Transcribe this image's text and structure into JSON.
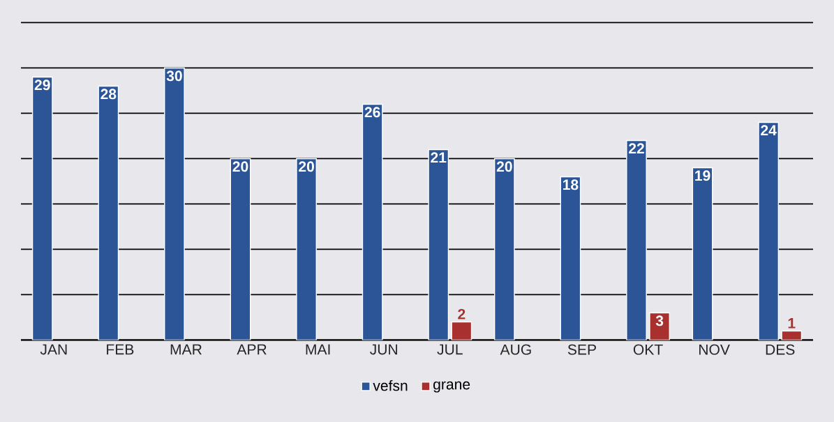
{
  "chart_data": {
    "type": "bar",
    "categories": [
      "JAN",
      "FEB",
      "MAR",
      "APR",
      "MAI",
      "JUN",
      "JUL",
      "AUG",
      "SEP",
      "OKT",
      "NOV",
      "DES"
    ],
    "series": [
      {
        "name": "vefsn",
        "color": "#2c5597",
        "values": [
          29,
          28,
          30,
          20,
          20,
          26,
          21,
          20,
          18,
          22,
          19,
          24
        ]
      },
      {
        "name": "grane",
        "color": "#a8302e",
        "values": [
          null,
          null,
          null,
          null,
          null,
          null,
          2,
          null,
          null,
          3,
          null,
          1
        ]
      }
    ],
    "ylim": [
      0,
      35
    ],
    "yticks": [
      {
        "value": 0,
        "label": null
      },
      {
        "value": 5,
        "label": null
      },
      {
        "value": 10,
        "label": null
      },
      {
        "value": 15,
        "label": null
      },
      {
        "value": 20,
        "label": null
      },
      {
        "value": 25,
        "label": null
      },
      {
        "value": 30,
        "label": null
      },
      {
        "value": 35,
        "label": null
      }
    ],
    "tick_labels": "x",
    "grid": "y",
    "legend": "bottom",
    "data_labels": true
  }
}
